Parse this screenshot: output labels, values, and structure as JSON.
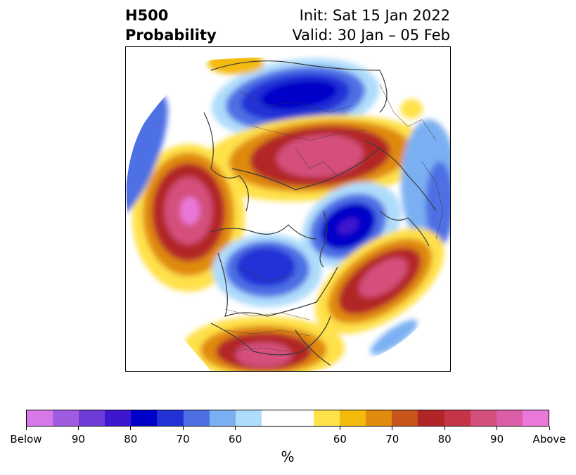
{
  "title": {
    "line1": "H500",
    "line2": "Probability",
    "init": "Init: Sat 15 Jan 2022",
    "valid": "Valid: 30 Jan – 05 Feb"
  },
  "colorbar": {
    "unit": "%",
    "colors": [
      "#d678e8",
      "#a05ce0",
      "#6e3bd8",
      "#3e16cf",
      "#0000c8",
      "#2233d6",
      "#4e70e4",
      "#7ab0f2",
      "#aedcfb",
      "#ffffff",
      "#ffffff",
      "#ffe14a",
      "#f4ba0c",
      "#e08a0e",
      "#c8561a",
      "#b22526",
      "#c63448",
      "#d4507c",
      "#dc5ea8",
      "#ea78d8"
    ],
    "labels": [
      "Below",
      "90",
      "80",
      "70",
      "60",
      "60",
      "70",
      "80",
      "90",
      "Above"
    ],
    "label_boundaries": [
      0,
      2,
      4,
      6,
      8,
      12,
      14,
      16,
      18,
      20
    ]
  },
  "map": {
    "projection": "north-polar-stereographic",
    "colors": {
      "below_light": "#aedcfb",
      "below_mid": "#7ab0f2",
      "below_dark": "#2233d6",
      "below_core": "#0000c8",
      "above_light": "#ffe14a",
      "above_mid": "#f4ba0c",
      "above_dark": "#b22526",
      "above_core": "#dc5ea8",
      "coastline": "#3a3a3a"
    }
  }
}
